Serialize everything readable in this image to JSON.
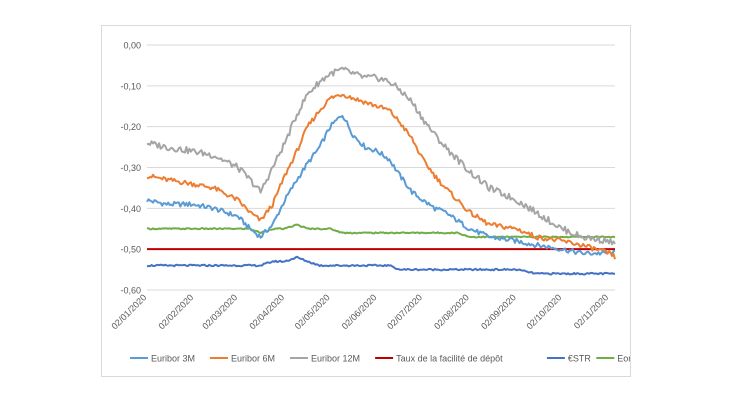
{
  "chart_data": {
    "type": "line",
    "title": "",
    "xlabel": "",
    "ylabel": "",
    "ylim": [
      -0.6,
      0.0
    ],
    "y_ticks": [
      "0,00",
      "-0,10",
      "-0,20",
      "-0,30",
      "-0,40",
      "-0,50",
      "-0,60"
    ],
    "y_tick_values": [
      0.0,
      -0.1,
      -0.2,
      -0.3,
      -0.4,
      -0.5,
      -0.6
    ],
    "x_ticks": [
      "02/01/2020",
      "02/02/2020",
      "02/03/2020",
      "02/04/2020",
      "02/05/2020",
      "02/06/2020",
      "02/07/2020",
      "02/08/2020",
      "02/09/2020",
      "02/10/2020",
      "02/11/2020"
    ],
    "x_range": [
      "02/01/2020",
      "06/11/2020"
    ],
    "grid": "horizontal",
    "legend": "bottom",
    "x_dates": [
      "2020-01-02",
      "2020-01-15",
      "2020-02-01",
      "2020-02-15",
      "2020-03-02",
      "2020-03-10",
      "2020-03-17",
      "2020-03-25",
      "2020-04-02",
      "2020-04-10",
      "2020-04-17",
      "2020-04-25",
      "2020-05-02",
      "2020-05-10",
      "2020-05-17",
      "2020-05-25",
      "2020-06-02",
      "2020-06-10",
      "2020-06-17",
      "2020-06-25",
      "2020-07-02",
      "2020-07-10",
      "2020-07-17",
      "2020-07-25",
      "2020-08-02",
      "2020-08-15",
      "2020-09-02",
      "2020-09-15",
      "2020-10-02",
      "2020-10-15",
      "2020-11-02",
      "2020-11-06"
    ],
    "series": [
      {
        "name": "Euribor 3M",
        "color": "#5b9bd5",
        "values": [
          -0.38,
          -0.39,
          -0.39,
          -0.4,
          -0.42,
          -0.45,
          -0.47,
          -0.44,
          -0.38,
          -0.33,
          -0.29,
          -0.25,
          -0.2,
          -0.17,
          -0.22,
          -0.25,
          -0.26,
          -0.28,
          -0.32,
          -0.36,
          -0.38,
          -0.4,
          -0.41,
          -0.43,
          -0.45,
          -0.47,
          -0.48,
          -0.49,
          -0.5,
          -0.51,
          -0.51,
          -0.51
        ]
      },
      {
        "name": "Euribor 6M",
        "color": "#ed7d31",
        "values": [
          -0.32,
          -0.33,
          -0.34,
          -0.35,
          -0.38,
          -0.41,
          -0.43,
          -0.39,
          -0.32,
          -0.26,
          -0.2,
          -0.16,
          -0.13,
          -0.12,
          -0.13,
          -0.14,
          -0.15,
          -0.16,
          -0.19,
          -0.23,
          -0.28,
          -0.32,
          -0.35,
          -0.38,
          -0.41,
          -0.44,
          -0.45,
          -0.47,
          -0.48,
          -0.49,
          -0.51,
          -0.52
        ]
      },
      {
        "name": "Euribor 12M",
        "color": "#a5a5a5",
        "values": [
          -0.24,
          -0.25,
          -0.26,
          -0.27,
          -0.3,
          -0.33,
          -0.36,
          -0.3,
          -0.24,
          -0.17,
          -0.12,
          -0.09,
          -0.07,
          -0.06,
          -0.07,
          -0.08,
          -0.08,
          -0.09,
          -0.11,
          -0.14,
          -0.18,
          -0.22,
          -0.25,
          -0.28,
          -0.31,
          -0.35,
          -0.38,
          -0.41,
          -0.45,
          -0.47,
          -0.48,
          -0.49
        ]
      },
      {
        "name": "Taux de la facilité de dépôt",
        "color": "#c00000",
        "values": [
          -0.5,
          -0.5,
          -0.5,
          -0.5,
          -0.5,
          -0.5,
          -0.5,
          -0.5,
          -0.5,
          -0.5,
          -0.5,
          -0.5,
          -0.5,
          -0.5,
          -0.5,
          -0.5,
          -0.5,
          -0.5,
          -0.5,
          -0.5,
          -0.5,
          -0.5,
          -0.5,
          -0.5,
          -0.5,
          -0.5,
          -0.5,
          -0.5,
          -0.5,
          -0.5,
          -0.5,
          -0.5
        ]
      },
      {
        "name": "€STR",
        "color": "#4472c4",
        "values": [
          -0.54,
          -0.54,
          -0.54,
          -0.54,
          -0.54,
          -0.54,
          -0.54,
          -0.53,
          -0.53,
          -0.52,
          -0.53,
          -0.54,
          -0.54,
          -0.54,
          -0.54,
          -0.54,
          -0.54,
          -0.54,
          -0.55,
          -0.55,
          -0.55,
          -0.55,
          -0.55,
          -0.55,
          -0.55,
          -0.55,
          -0.55,
          -0.56,
          -0.56,
          -0.56,
          -0.56,
          -0.56
        ]
      },
      {
        "name": "Eonia",
        "color": "#70ad47",
        "values": [
          -0.45,
          -0.45,
          -0.45,
          -0.45,
          -0.45,
          -0.45,
          -0.46,
          -0.45,
          -0.45,
          -0.44,
          -0.45,
          -0.45,
          -0.45,
          -0.46,
          -0.46,
          -0.46,
          -0.46,
          -0.46,
          -0.46,
          -0.46,
          -0.46,
          -0.46,
          -0.46,
          -0.46,
          -0.47,
          -0.47,
          -0.47,
          -0.47,
          -0.47,
          -0.47,
          -0.47,
          -0.47
        ]
      }
    ]
  }
}
